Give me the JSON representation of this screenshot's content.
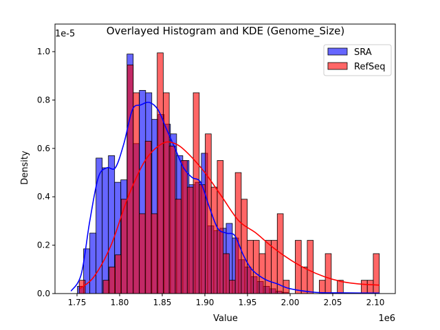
{
  "chart_data": {
    "type": "bar",
    "title": "Overlayed Histogram and KDE (Genome_Size)",
    "xlabel": "Value",
    "ylabel": "Density",
    "x_scale_label": "1e6",
    "y_scale_label": "1e-5",
    "xlim": [
      1.7242,
      2.1234
    ],
    "ylim": [
      0,
      1.114
    ],
    "xticks": [
      1.75,
      1.8,
      1.85,
      1.9,
      1.95,
      2.0,
      2.05,
      2.1
    ],
    "xtick_labels": [
      "1.75",
      "1.80",
      "1.85",
      "1.90",
      "1.95",
      "2.00",
      "2.05",
      "2.10"
    ],
    "yticks": [
      0,
      0.2,
      0.4,
      0.6,
      0.8,
      1.0
    ],
    "ytick_labels": [
      "0.0",
      "0.2",
      "0.4",
      "0.6",
      "0.8",
      "1.0"
    ],
    "grid": false,
    "legend_position": "top-right",
    "series": [
      {
        "name": "SRA",
        "color": "#0000ff",
        "bin_start": 1.7505,
        "bin_width": 0.00727,
        "values": [
          0.03,
          0.185,
          0.25,
          0.56,
          0.52,
          0.57,
          0.46,
          0.47,
          0.99,
          0.62,
          0.84,
          0.83,
          0.72,
          0.74,
          0.7,
          0.66,
          0.57,
          0.55,
          0.45,
          0.46,
          0.58,
          0.28,
          0.26,
          0.27,
          0.29,
          0.23,
          0.14,
          0.11,
          0.07,
          0.05,
          0.03,
          0.02,
          0.01,
          0.005
        ],
        "kde": [
          [
            1.743,
            0.01
          ],
          [
            1.755,
            0.08
          ],
          [
            1.765,
            0.3
          ],
          [
            1.775,
            0.48
          ],
          [
            1.785,
            0.52
          ],
          [
            1.795,
            0.52
          ],
          [
            1.805,
            0.62
          ],
          [
            1.815,
            0.76
          ],
          [
            1.825,
            0.78
          ],
          [
            1.835,
            0.79
          ],
          [
            1.845,
            0.76
          ],
          [
            1.855,
            0.68
          ],
          [
            1.865,
            0.6
          ],
          [
            1.875,
            0.52
          ],
          [
            1.885,
            0.48
          ],
          [
            1.895,
            0.46
          ],
          [
            1.905,
            0.36
          ],
          [
            1.915,
            0.27
          ],
          [
            1.925,
            0.25
          ],
          [
            1.935,
            0.24
          ],
          [
            1.945,
            0.16
          ],
          [
            1.955,
            0.1
          ],
          [
            1.97,
            0.06
          ],
          [
            1.985,
            0.04
          ],
          [
            2.0,
            0.02
          ],
          [
            2.03,
            0.005
          ],
          [
            2.06,
            0.003
          ],
          [
            2.105,
            0.002
          ]
        ]
      },
      {
        "name": "RefSeq",
        "color": "#ff0000",
        "bin_start": 1.7526,
        "bin_width": 0.00704,
        "values": [
          0.055,
          0,
          0,
          0,
          0.055,
          0.11,
          0.16,
          0.39,
          0.945,
          0.83,
          0.33,
          0.63,
          0.33,
          0.995,
          0.83,
          0.61,
          0.39,
          0.55,
          0.44,
          0.83,
          0.45,
          0.66,
          0.44,
          0.55,
          0.165,
          0.055,
          0.5,
          0.39,
          0.22,
          0.22,
          0.165,
          0.22,
          0.22,
          0.33,
          0.055,
          0,
          0.22,
          0.11,
          0.22,
          0,
          0.055,
          0.165,
          0,
          0.055,
          0,
          0,
          0,
          0.055,
          0.055,
          0.165
        ],
        "kde": [
          [
            1.753,
            0.02
          ],
          [
            1.77,
            0.07
          ],
          [
            1.79,
            0.2
          ],
          [
            1.81,
            0.4
          ],
          [
            1.83,
            0.55
          ],
          [
            1.85,
            0.62
          ],
          [
            1.865,
            0.62
          ],
          [
            1.88,
            0.58
          ],
          [
            1.9,
            0.5
          ],
          [
            1.92,
            0.4
          ],
          [
            1.94,
            0.3
          ],
          [
            1.96,
            0.25
          ],
          [
            1.98,
            0.19
          ],
          [
            2.0,
            0.14
          ],
          [
            2.02,
            0.1
          ],
          [
            2.04,
            0.07
          ],
          [
            2.06,
            0.05
          ],
          [
            2.08,
            0.04
          ],
          [
            2.105,
            0.035
          ]
        ]
      }
    ]
  }
}
